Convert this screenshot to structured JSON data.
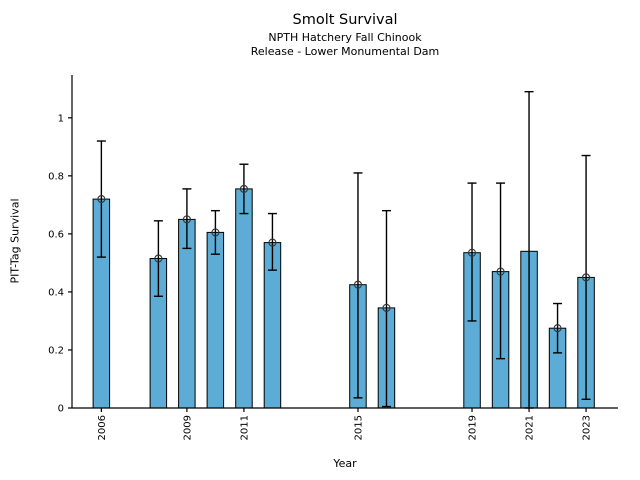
{
  "title": "Smolt Survival",
  "subtitle1": "NPTH Hatchery Fall Chinook",
  "subtitle2": "Release - Lower Monumental Dam",
  "xlabel": "Year",
  "ylabel": "PIT-Tag Survival",
  "colors": {
    "bar_fill": "#5CACD6",
    "bar_edge": "#000000",
    "errorbar": "#000000",
    "marker_edge": "#333333",
    "axis": "#000000"
  },
  "chart_data": {
    "type": "bar",
    "title": "Smolt Survival",
    "subtitle": "NPTH Hatchery Fall Chinook / Release - Lower Monumental Dam",
    "xlabel": "Year",
    "ylabel": "PIT-Tag Survival",
    "xlim": [
      2004.97,
      2024.12
    ],
    "ylim": [
      0,
      1.1475
    ],
    "bar_width_years": 0.58,
    "grid": false,
    "xticks": [
      2006,
      2009,
      2011,
      2015,
      2019,
      2021,
      2023
    ],
    "xtick_labels": [
      "2006",
      "2009",
      "2011",
      "2015",
      "2019",
      "2021",
      "2023"
    ],
    "yticks": [
      0,
      0.2,
      0.4,
      0.6,
      0.8,
      1
    ],
    "ytick_labels": [
      "0",
      "0.2",
      "0.4",
      "0.6",
      "0.8",
      "1"
    ],
    "points": [
      {
        "year": 2006,
        "value": 0.72,
        "lo": 0.52,
        "hi": 0.92,
        "marker": true
      },
      {
        "year": 2008,
        "value": 0.515,
        "lo": 0.385,
        "hi": 0.645,
        "marker": true
      },
      {
        "year": 2009,
        "value": 0.65,
        "lo": 0.55,
        "hi": 0.755,
        "marker": true
      },
      {
        "year": 2010,
        "value": 0.605,
        "lo": 0.53,
        "hi": 0.68,
        "marker": true
      },
      {
        "year": 2011,
        "value": 0.755,
        "lo": 0.67,
        "hi": 0.84,
        "marker": true
      },
      {
        "year": 2012,
        "value": 0.57,
        "lo": 0.475,
        "hi": 0.67,
        "marker": true
      },
      {
        "year": 2015,
        "value": 0.425,
        "lo": 0.035,
        "hi": 0.81,
        "marker": true
      },
      {
        "year": 2016,
        "value": 0.345,
        "lo": 0.005,
        "hi": 0.68,
        "marker": true
      },
      {
        "year": 2019,
        "value": 0.535,
        "lo": 0.3,
        "hi": 0.775,
        "marker": true
      },
      {
        "year": 2020,
        "value": 0.47,
        "lo": 0.17,
        "hi": 0.775,
        "marker": true
      },
      {
        "year": 2021,
        "value": 0.54,
        "lo": 0.0,
        "hi": 1.09,
        "marker": false
      },
      {
        "year": 2022,
        "value": 0.275,
        "lo": 0.19,
        "hi": 0.36,
        "marker": true
      },
      {
        "year": 2023,
        "value": 0.45,
        "lo": 0.03,
        "hi": 0.87,
        "marker": true
      }
    ]
  }
}
